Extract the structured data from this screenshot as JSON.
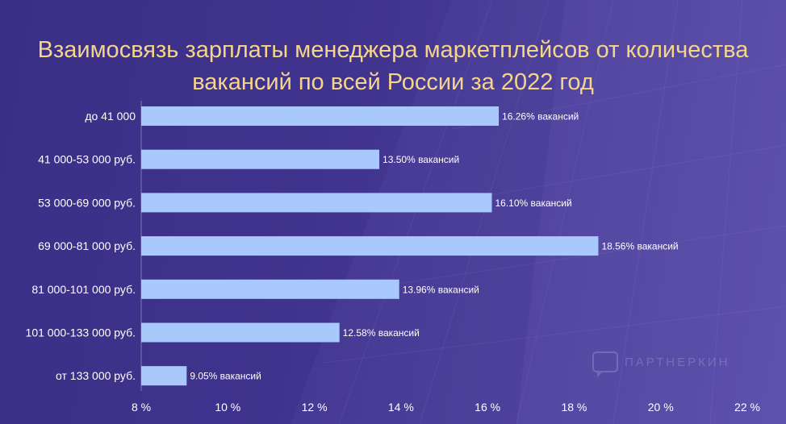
{
  "title_lines": [
    "Взаимосвязь зарплаты менеджера маркетплейсов от количества",
    "вакансий по всей России за 2022 год"
  ],
  "watermark": "ПАРТНЕРКИН",
  "colors": {
    "bar": "#a9c8fb",
    "title": "#f5d58a",
    "text": "#ffffff",
    "background": "#40338d"
  },
  "chart_data": {
    "type": "bar",
    "orientation": "horizontal",
    "categories": [
      "до 41 000",
      "41 000-53 000 руб.",
      "53 000-69 000 руб.",
      "69 000-81 000 руб.",
      "81 000-101 000 руб.",
      "101 000-133 000 руб.",
      "от 133 000 руб."
    ],
    "values": [
      16.26,
      13.5,
      16.1,
      18.56,
      13.96,
      12.58,
      9.05
    ],
    "data_labels": [
      "16.26% вакансий",
      "13.50% вакансий",
      "16.10% вакансий",
      "18.56% вакансий",
      "13.96% вакансий",
      "12.58% вакансий",
      "9.05% вакансий"
    ],
    "xlim": [
      8,
      22
    ],
    "xticks": [
      "8 %",
      "10 %",
      "12 %",
      "14 %",
      "16 %",
      "18 %",
      "20 %",
      "22 %"
    ],
    "xtick_values": [
      8,
      10,
      12,
      14,
      16,
      18,
      20,
      22
    ],
    "title": "Взаимосвязь зарплаты менеджера маркетплейсов от количества вакансий по всей России за 2022 год",
    "xlabel": "",
    "ylabel": "",
    "grid": false,
    "legend": "none"
  }
}
